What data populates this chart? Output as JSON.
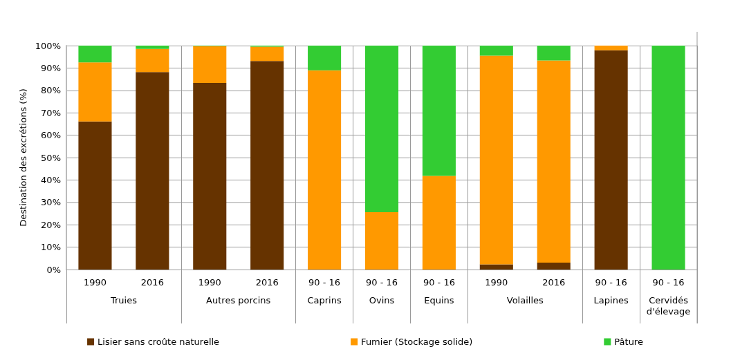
{
  "chart_data": {
    "type": "bar",
    "stacked": true,
    "ylabel": "Destination des excrétions (%)",
    "categories": [
      "1990",
      "2016",
      "1990",
      "2016",
      "90 - 16",
      "90 - 16",
      "90 - 16",
      "1990",
      "2016",
      "90 - 16",
      "90 - 16"
    ],
    "series": [
      {
        "name": "Lisier sans croûte naturelle",
        "color": "#663300",
        "values": [
          66.1,
          88.2,
          83.3,
          93.1,
          0,
          0,
          0,
          2.3,
          3.1,
          97.9,
          0
        ]
      },
      {
        "name": "Fumier (Stockage solide)",
        "color": "#ff9900",
        "values": [
          26.4,
          10.3,
          16.5,
          6.4,
          89,
          25.6,
          41.8,
          93.2,
          90.3,
          2.1,
          0
        ]
      },
      {
        "name": "Pâture",
        "color": "#33cc33",
        "values": [
          7.5,
          1.5,
          0.2,
          0.5,
          11,
          74.4,
          58.2,
          4.5,
          6.6,
          0,
          100
        ]
      }
    ],
    "ylim": [
      0,
      100
    ],
    "yticks": [
      {
        "value": 0,
        "label": "0%"
      },
      {
        "value": 10,
        "label": "10%"
      },
      {
        "value": 20,
        "label": "20%"
      },
      {
        "value": 30,
        "label": "30%"
      },
      {
        "value": 40,
        "label": "40%"
      },
      {
        "value": 50,
        "label": "50%"
      },
      {
        "value": 60,
        "label": "60%"
      },
      {
        "value": 70,
        "label": "70%"
      },
      {
        "value": 80,
        "label": "80%"
      },
      {
        "value": 90,
        "label": "90%"
      },
      {
        "value": 100,
        "label": "100%"
      }
    ],
    "grid": "y",
    "legend": "bottom",
    "annotations": [
      "Truies",
      "Autres porcins",
      "Caprins",
      "Ovins",
      "Equins",
      "Volailles",
      "Lapines",
      "Cervidés\nd'élevage"
    ]
  }
}
